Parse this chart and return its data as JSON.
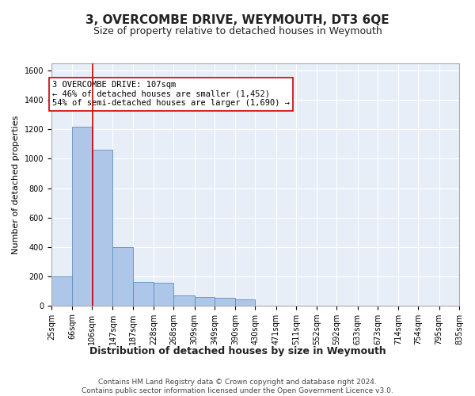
{
  "title": "3, OVERCOMBE DRIVE, WEYMOUTH, DT3 6QE",
  "subtitle": "Size of property relative to detached houses in Weymouth",
  "xlabel": "Distribution of detached houses by size in Weymouth",
  "ylabel": "Number of detached properties",
  "bin_edges": [
    25,
    66,
    106,
    147,
    187,
    228,
    268,
    309,
    349,
    390,
    430,
    471,
    511,
    552,
    592,
    633,
    673,
    714,
    754,
    795,
    835
  ],
  "bar_heights": [
    200,
    1220,
    1060,
    400,
    160,
    155,
    70,
    60,
    55,
    40,
    0,
    0,
    0,
    0,
    0,
    0,
    0,
    0,
    0,
    0
  ],
  "bar_color": "#aec6e8",
  "bar_edge_color": "#5a8fc0",
  "bg_color": "#e8eef7",
  "grid_color": "#ffffff",
  "vline_x": 107,
  "vline_color": "#cc0000",
  "annotation_text": "3 OVERCOMBE DRIVE: 107sqm\n← 46% of detached houses are smaller (1,452)\n54% of semi-detached houses are larger (1,690) →",
  "annotation_box_color": "#ffffff",
  "annotation_box_edge": "#cc0000",
  "ylim": [
    0,
    1650
  ],
  "yticks": [
    0,
    200,
    400,
    600,
    800,
    1000,
    1200,
    1400,
    1600
  ],
  "footer": "Contains HM Land Registry data © Crown copyright and database right 2024.\nContains public sector information licensed under the Open Government Licence v3.0.",
  "title_fontsize": 11,
  "subtitle_fontsize": 9,
  "xlabel_fontsize": 9,
  "ylabel_fontsize": 8,
  "tick_fontsize": 7,
  "annotation_fontsize": 7.5,
  "footer_fontsize": 6.5
}
